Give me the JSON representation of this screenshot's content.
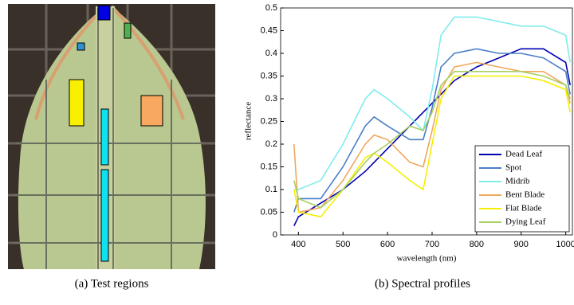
{
  "chart_data": {
    "type": "line",
    "xlabel": "wavelength (nm)",
    "ylabel": "reflectance",
    "x": [
      390,
      400,
      450,
      500,
      550,
      570,
      600,
      650,
      680,
      700,
      720,
      750,
      800,
      850,
      900,
      950,
      1000,
      1010
    ],
    "series": [
      {
        "name": "Dead Leaf",
        "color": "#0000b0",
        "values": [
          0.02,
          0.04,
          0.07,
          0.1,
          0.14,
          0.16,
          0.19,
          0.24,
          0.27,
          0.29,
          0.31,
          0.34,
          0.37,
          0.39,
          0.41,
          0.41,
          0.38,
          0.33
        ]
      },
      {
        "name": "Spot",
        "color": "#4a7ec8",
        "values": [
          0.05,
          0.08,
          0.08,
          0.15,
          0.24,
          0.26,
          0.24,
          0.21,
          0.21,
          0.28,
          0.37,
          0.4,
          0.41,
          0.4,
          0.4,
          0.39,
          0.36,
          0.31
        ]
      },
      {
        "name": "Midrib",
        "color": "#80ecec",
        "values": [
          0.1,
          0.1,
          0.12,
          0.2,
          0.3,
          0.32,
          0.3,
          0.26,
          0.23,
          0.32,
          0.44,
          0.48,
          0.48,
          0.47,
          0.46,
          0.46,
          0.44,
          0.38
        ]
      },
      {
        "name": "Bent Blade",
        "color": "#f0a860",
        "values": [
          0.2,
          0.05,
          0.06,
          0.12,
          0.2,
          0.22,
          0.21,
          0.16,
          0.15,
          0.23,
          0.32,
          0.37,
          0.38,
          0.37,
          0.36,
          0.36,
          0.33,
          0.29
        ]
      },
      {
        "name": "Flat Blade",
        "color": "#f4f000",
        "values": [
          0.1,
          0.05,
          0.04,
          0.1,
          0.17,
          0.18,
          0.16,
          0.12,
          0.1,
          0.2,
          0.3,
          0.35,
          0.35,
          0.35,
          0.35,
          0.34,
          0.32,
          0.27
        ]
      },
      {
        "name": "Dying Leaf",
        "color": "#a8d060",
        "values": [
          0.12,
          0.08,
          0.06,
          0.1,
          0.16,
          0.18,
          0.2,
          0.24,
          0.23,
          0.27,
          0.33,
          0.36,
          0.36,
          0.36,
          0.36,
          0.35,
          0.33,
          0.3
        ]
      }
    ],
    "xlim": [
      360,
      1015
    ],
    "xticks": [
      400,
      500,
      600,
      700,
      800,
      900,
      1000
    ],
    "ylim": [
      0,
      0.5
    ],
    "yticks": [
      0,
      0.05,
      0.1,
      0.15,
      0.2,
      0.25,
      0.3,
      0.35,
      0.4,
      0.45,
      0.5
    ],
    "legend": "lower right"
  },
  "figure": {
    "caption_a": "(a) Test regions",
    "caption_b": "(b) Spectral profiles"
  }
}
